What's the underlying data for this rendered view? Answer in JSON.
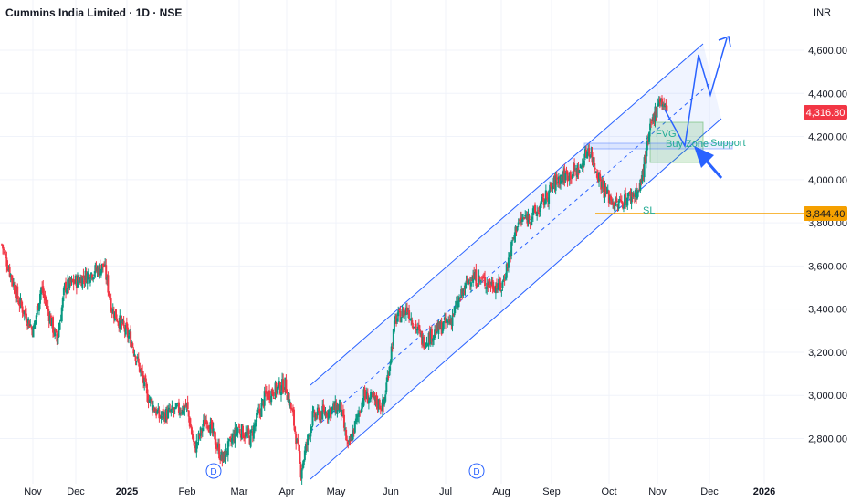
{
  "header": {
    "title": "Cummins India Limited · 1D · NSE",
    "currency": "INR"
  },
  "colors": {
    "up": "#089981",
    "down": "#f23645",
    "drawing": "#2962ff",
    "sl": "#f5a000",
    "fvg": "#4caf50"
  },
  "chart_data": {
    "type": "candlestick",
    "title": "Cummins India Limited · 1D · NSE",
    "ylim": [
      2650,
      4700
    ],
    "y_ticks": [
      "2,800.00",
      "3,000.00",
      "3,200.00",
      "3,400.00",
      "3,600.00",
      "3,800.00",
      "4,000.00",
      "4,200.00",
      "4,400.00",
      "4,600.00"
    ],
    "y_tick_values": [
      2800,
      3000,
      3200,
      3400,
      3600,
      3800,
      4000,
      4200,
      4400,
      4600
    ],
    "x_ticks": [
      "Nov",
      "Dec",
      "2025",
      "Feb",
      "Mar",
      "Apr",
      "May",
      "Jun",
      "Jul",
      "Aug",
      "Sep",
      "Oct",
      "Nov",
      "Dec",
      "2026"
    ],
    "close_path": [
      [
        0,
        3700
      ],
      [
        4,
        3450
      ],
      [
        8,
        3300
      ],
      [
        10,
        3500
      ],
      [
        14,
        3250
      ],
      [
        16,
        3500
      ],
      [
        26,
        3600
      ],
      [
        28,
        3400
      ],
      [
        33,
        3250
      ],
      [
        37,
        3000
      ],
      [
        40,
        2900
      ],
      [
        47,
        2950
      ],
      [
        49,
        2750
      ],
      [
        52,
        2900
      ],
      [
        56,
        2700
      ],
      [
        60,
        2850
      ],
      [
        63,
        2800
      ],
      [
        67,
        3000
      ],
      [
        72,
        3050
      ],
      [
        74,
        2900
      ],
      [
        76,
        2650
      ],
      [
        79,
        2900
      ],
      [
        86,
        2950
      ],
      [
        88,
        2750
      ],
      [
        92,
        3000
      ],
      [
        97,
        2950
      ],
      [
        100,
        3350
      ],
      [
        103,
        3400
      ],
      [
        107,
        3250
      ],
      [
        114,
        3350
      ],
      [
        119,
        3550
      ],
      [
        127,
        3500
      ],
      [
        129,
        3650
      ],
      [
        131,
        3800
      ],
      [
        136,
        3850
      ],
      [
        141,
        4000
      ],
      [
        147,
        4050
      ],
      [
        149,
        4150
      ],
      [
        153,
        3950
      ],
      [
        156,
        3880
      ],
      [
        162,
        3950
      ],
      [
        165,
        4250
      ],
      [
        167,
        4380
      ],
      [
        169,
        4317
      ]
    ],
    "last_price": "4,316.80",
    "sl_price": "3,844.40",
    "annotations": {
      "fvg": "FVG",
      "buy_zone": "Buy Zone",
      "support": "Support",
      "sl": "SL"
    },
    "dividend_marks": [
      "D",
      "D"
    ]
  }
}
